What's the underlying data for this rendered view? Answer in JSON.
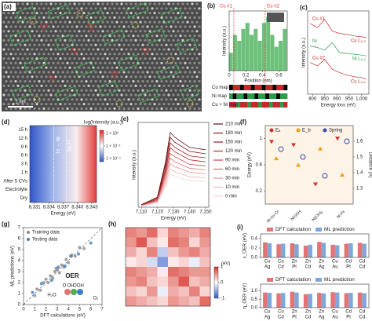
{
  "chart_data": [
    {
      "type": "image",
      "label": "(a)",
      "scale_label": "1 nm"
    },
    {
      "type": "bar",
      "label": "(b)",
      "ylabel": "Intensity (a.u.)",
      "xlabel": "Position (nm)",
      "color": "#6cc07a",
      "x": [
        0.02,
        0.07,
        0.12,
        0.17,
        0.22,
        0.27,
        0.32,
        0.37,
        0.42,
        0.47,
        0.52,
        0.57,
        0.62,
        0.67
      ],
      "values": [
        3,
        6,
        5,
        7,
        8,
        6,
        7,
        5,
        8,
        9,
        6,
        4,
        5,
        7
      ],
      "xlim": [
        0,
        0.7
      ],
      "ylim": [
        0,
        10
      ],
      "xticks": [
        0,
        0.2,
        0.4,
        0.6
      ],
      "annotations": [
        "Cu #1",
        "Cu #2"
      ],
      "maps": [
        "Cu map",
        "Ni map",
        "Cu + Ni map"
      ]
    },
    {
      "type": "line",
      "label": "(c)",
      "ylabel": "Intensity (a.u.)",
      "xlabel": "Energy loss (eV)",
      "x": [
        790,
        820,
        850,
        880,
        910,
        940,
        970,
        1000,
        1020
      ],
      "series": [
        {
          "name": "Cu #1",
          "color": "#c62828",
          "values": [
            8.5,
            8,
            9,
            7.6,
            7.3,
            7.2,
            7,
            6.9,
            6.8
          ]
        },
        {
          "name": "Ni",
          "color": "#2e9d4a",
          "values": [
            5.8,
            5.6,
            5.3,
            6.2,
            5,
            4.9,
            4.8,
            4.7,
            4.6
          ]
        },
        {
          "name": "Cu #2",
          "color": "#c62828",
          "values": [
            3.8,
            3.4,
            4.2,
            3,
            2.6,
            2.3,
            2.1,
            2,
            1.8
          ]
        }
      ],
      "xlim": [
        780,
        1030
      ],
      "ylim": [
        0,
        10
      ],
      "xticks": [
        800,
        850,
        900,
        950,
        {
          "value": 1000,
          "label": "1,000"
        }
      ],
      "annotations": [
        "Cu L₃,₂",
        "Ni L₃,₂",
        "Cu L₃,₂"
      ]
    },
    {
      "type": "heatmap",
      "label": "(d)",
      "xlabel": "Energy (eV)",
      "categories": [
        "15 h",
        "12 h",
        "9 h",
        "6 h",
        "3 h",
        "1 h",
        "After 5 CVs",
        "Electrolyte",
        "Dry"
      ],
      "xlim": [
        8330,
        8344
      ],
      "xticks": [
        {
          "value": 8331,
          "label": "8,331"
        },
        {
          "value": 8334,
          "label": "8,334"
        },
        {
          "value": 8337,
          "label": "8,337"
        },
        {
          "value": 8340,
          "label": "8,340"
        },
        {
          "value": 8343,
          "label": "8,343"
        }
      ],
      "colorbar_title": "log(Intensity (a.u.))",
      "clim": [
        -4.5,
        0.5
      ],
      "cticks": [
        {
          "value": 0,
          "label": "1 × 10⁰"
        },
        {
          "value": -2,
          "label": "1 × 10⁻²"
        },
        {
          "value": -4,
          "label": "1 × 10⁻⁴"
        }
      ],
      "annotations": [
        "1s → 4p",
        "MLFT"
      ]
    },
    {
      "type": "line",
      "label": "(e)",
      "ylabel": "Intensity (a.u.)",
      "xlabel": "Energy (eV)",
      "x": [
        7110,
        7120,
        7125,
        7128,
        7131,
        7140,
        7150
      ],
      "series": [
        {
          "name": "210 min",
          "color": "#5a0d0d",
          "values": [
            0.05,
            0.2,
            0.9,
            1.5,
            1.4,
            1.2,
            1.15
          ]
        },
        {
          "name": "180 min",
          "color": "#7a1414",
          "values": [
            0.05,
            0.19,
            0.84,
            1.4,
            1.3,
            1.12,
            1.07
          ]
        },
        {
          "name": "150 min",
          "color": "#9a1c1c",
          "values": [
            0.04,
            0.17,
            0.77,
            1.29,
            1.2,
            1.03,
            0.99
          ]
        },
        {
          "name": "120 min",
          "color": "#b52a2a",
          "values": [
            0.04,
            0.16,
            0.71,
            1.19,
            1.11,
            0.95,
            0.91
          ]
        },
        {
          "name": "90 min",
          "color": "#c94545",
          "values": [
            0.04,
            0.14,
            0.65,
            1.08,
            1.01,
            0.86,
            0.83
          ]
        },
        {
          "name": "60 min",
          "color": "#d86a6a",
          "values": [
            0.03,
            0.13,
            0.59,
            0.98,
            0.91,
            0.78,
            0.75
          ]
        },
        {
          "name": "30 min",
          "color": "#e58f8f",
          "values": [
            0.03,
            0.12,
            0.52,
            0.87,
            0.81,
            0.7,
            0.67
          ]
        },
        {
          "name": "10 min",
          "color": "#efb3b3",
          "values": [
            0.03,
            0.1,
            0.46,
            0.77,
            0.71,
            0.61,
            0.59
          ]
        },
        {
          "name": "0 min",
          "color": "#f6d3d3",
          "values": [
            0.02,
            0.09,
            0.4,
            0.66,
            0.62,
            0.53,
            0.51
          ]
        }
      ],
      "xlim": [
        7108,
        7152
      ],
      "ylim": [
        0,
        1.7
      ],
      "xticks": [
        {
          "value": 7110,
          "label": "7,110"
        },
        {
          "value": 7120,
          "label": "7,120"
        },
        {
          "value": 7130,
          "label": "7,130"
        },
        {
          "value": 7140,
          "label": "7,140"
        },
        {
          "value": 7150,
          "label": "7,150"
        }
      ]
    },
    {
      "type": "scatter_cat",
      "label": "(f)",
      "ylabel": "Energy (eV)",
      "y2label": "Distance (Å)",
      "categories": [
        "Ni-Ov-Cr",
        "NiOOH",
        "Ni(OH)₂",
        "Ni-Fe"
      ],
      "series": [
        {
          "name": "Eₐ",
          "color": "#d32f2f",
          "marker": "tri-down",
          "values": [
            0.95,
            0.9,
            0.3,
            1.0
          ]
        },
        {
          "name": "E_b",
          "color": "#f39c12",
          "marker": "tri-up",
          "values": [
            0.7,
            0.6,
            0.85,
            0.45
          ]
        },
        {
          "name": "Spring",
          "color": "#3949ab",
          "marker": "circle",
          "axis": "y2",
          "values": [
            1.55,
            1.5,
            1.38,
            1.6
          ]
        }
      ],
      "ylim": [
        0,
        1.2
      ],
      "yticks": [
        0.2,
        0.6,
        1
      ],
      "y2lim": [
        1.2,
        1.7
      ],
      "y2ticks": [
        1.3,
        1.4,
        1.5,
        1.6
      ]
    },
    {
      "type": "scatter",
      "label": "(g)",
      "xlabel": "DFT calculations (eV)",
      "ylabel": "ML predictions (eV)",
      "series": [
        {
          "name": "Training data",
          "color": "#8a8a8a",
          "x": [
            1.2,
            1.5,
            1.8,
            2,
            2.2,
            2.4,
            2.6,
            2.8,
            3,
            3.2,
            3.4,
            3.6,
            3.8,
            4,
            4.3,
            4.6,
            5,
            5.4,
            1,
            2.9
          ],
          "values": [
            1.4,
            1.3,
            2,
            2.3,
            2,
            2.6,
            2.4,
            3,
            3.2,
            2.9,
            3.6,
            3.4,
            4.1,
            3.8,
            4.5,
            4.4,
            5.2,
            5.1,
            0.8,
            3.3
          ]
        },
        {
          "name": "Testing data",
          "color": "#3f7fc4",
          "x": [
            1.6,
            2.5,
            3.1,
            3.7,
            4.2,
            4.9,
            0.8,
            6
          ],
          "values": [
            1.9,
            2.2,
            3.4,
            3.5,
            4.4,
            4.6,
            1.1,
            5.6
          ]
        }
      ],
      "xlim": [
        0,
        7
      ],
      "ylim": [
        0,
        7
      ],
      "xticks": [
        0,
        1,
        2,
        3,
        4,
        5,
        6,
        7
      ],
      "yticks": [
        0,
        1,
        2,
        3,
        4,
        5,
        6,
        7
      ],
      "annotations": [
        "OER",
        "O",
        "OH",
        "OOH",
        "H₂O",
        "O₂"
      ]
    },
    {
      "type": "matrix",
      "label": "(h)",
      "colorbar_title": "(eV)",
      "clim": [
        -1,
        1
      ],
      "cticks": [
        -1,
        0,
        1
      ],
      "values": [
        [
          0.6,
          0.5,
          0.7,
          0.2,
          0.6,
          0.5,
          0.4,
          0.6
        ],
        [
          0.5,
          0.8,
          0.3,
          0.1,
          0.7,
          0.6,
          0.2,
          0.5
        ],
        [
          0.4,
          0.2,
          0.6,
          -0.3,
          0.3,
          0.5,
          0.6,
          0.4
        ],
        [
          0.1,
          0.2,
          -0.2,
          -0.6,
          0.1,
          0.2,
          -0.1,
          0.3
        ],
        [
          0.6,
          0.5,
          0.4,
          0.1,
          0.7,
          0.6,
          0.5,
          0.5
        ],
        [
          0.5,
          0.6,
          0.3,
          0.2,
          0.5,
          0.8,
          0.3,
          0.4
        ],
        [
          0.3,
          0.2,
          0.5,
          -0.1,
          0.4,
          0.3,
          0.6,
          0.2
        ],
        [
          0.5,
          0.4,
          0.3,
          0.2,
          0.5,
          0.4,
          0.3,
          0.7
        ]
      ]
    },
    {
      "type": "grouped_bar",
      "label": "(i)",
      "ylabel": "ε_OER (eV)",
      "categories": [
        [
          "Cu",
          "Ag"
        ],
        [
          "Cu",
          "Cd"
        ],
        [
          "Zn",
          "Pt"
        ],
        [
          "Zn",
          "Cd"
        ],
        [
          "Zn",
          "Ag"
        ],
        [
          "Cu",
          "Au"
        ],
        [
          "Cd",
          "Pt"
        ],
        [
          "Cd",
          "Cd"
        ]
      ],
      "series": [
        {
          "name": "DFT calculation",
          "color": "#e57373",
          "values": [
            0.32,
            0.28,
            0.3,
            0.25,
            0.33,
            0.27,
            0.29,
            0.31
          ]
        },
        {
          "name": "ML prediction",
          "color": "#7fa7d9",
          "values": [
            0.3,
            0.29,
            0.28,
            0.27,
            0.31,
            0.26,
            0.3,
            0.29
          ]
        }
      ],
      "ylim": [
        0,
        0.5
      ],
      "yticks": [
        {
          "value": 0,
          "label": "0.0"
        },
        0.2,
        0.4
      ]
    },
    {
      "type": "grouped_bar",
      "ylabel": "η_OER (eV)",
      "categories": [
        [
          "Cu",
          "Ag"
        ],
        [
          "Cu",
          "Cd"
        ],
        [
          "Zn",
          "Pt"
        ],
        [
          "Zn",
          "Cd"
        ],
        [
          "Zn",
          "Ag"
        ],
        [
          "Cu",
          "Au"
        ],
        [
          "Cd",
          "Pt"
        ],
        [
          "Cd",
          "Cd"
        ]
      ],
      "series": [
        {
          "name": "DFT calculation",
          "color": "#e57373",
          "values": [
            0.9,
            0.85,
            0.95,
            0.8,
            0.88,
            0.92,
            0.86,
            0.9
          ]
        },
        {
          "name": "ML prediction",
          "color": "#7fa7d9",
          "values": [
            0.88,
            0.87,
            0.9,
            0.82,
            0.85,
            0.9,
            0.88,
            0.86
          ]
        }
      ],
      "ylim": [
        0,
        1.4
      ],
      "yticks": [
        {
          "value": 0,
          "label": "0.0"
        },
        0.5,
        {
          "value": 1,
          "label": "1.0"
        }
      ]
    }
  ]
}
